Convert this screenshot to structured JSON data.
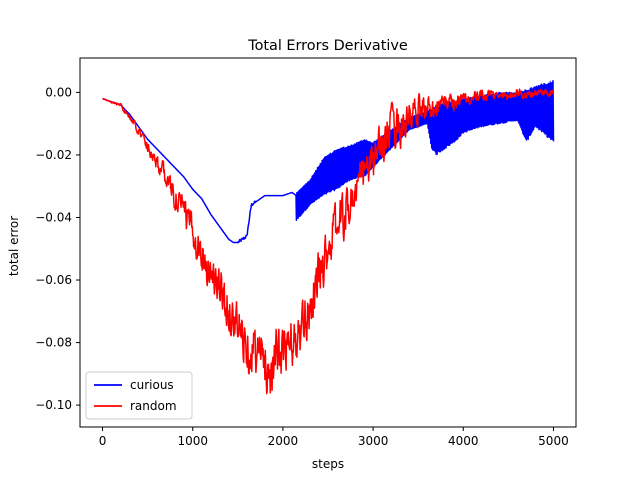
{
  "chart_data": {
    "type": "line",
    "title": "Total Errors Derivative",
    "xlabel": "steps",
    "ylabel": "total error",
    "xlim": [
      -250,
      5250
    ],
    "ylim": [
      -0.107,
      0.011
    ],
    "xticks": [
      0,
      1000,
      2000,
      3000,
      4000,
      5000
    ],
    "xtick_labels": [
      "0",
      "1000",
      "2000",
      "3000",
      "4000",
      "5000"
    ],
    "yticks": [
      0.0,
      -0.02,
      -0.04,
      -0.06,
      -0.08,
      -0.1
    ],
    "ytick_labels": [
      "0.00",
      "−0.02",
      "−0.04",
      "−0.06",
      "−0.08",
      "−0.10"
    ],
    "grid": false,
    "legend_position": "lower-left",
    "series": [
      {
        "name": "curious",
        "color": "#0000ff",
        "x": [
          0,
          100,
          200,
          300,
          400,
          500,
          600,
          700,
          800,
          900,
          1000,
          1100,
          1200,
          1300,
          1400,
          1450,
          1500,
          1550,
          1600,
          1650,
          1700,
          1750,
          1800,
          1900,
          2000,
          2100,
          2150,
          2200,
          2300,
          2400,
          2500,
          2600,
          2700,
          2800,
          2900,
          3000,
          3100,
          3200,
          3300,
          3400,
          3500,
          3600,
          3700,
          3800,
          3900,
          4000,
          4100,
          4200,
          4300,
          4400,
          4500,
          4600,
          4700,
          4800,
          4900,
          5000
        ],
        "y": [
          -0.002,
          -0.003,
          -0.004,
          -0.007,
          -0.011,
          -0.015,
          -0.018,
          -0.021,
          -0.024,
          -0.027,
          -0.031,
          -0.034,
          -0.039,
          -0.043,
          -0.047,
          -0.048,
          -0.048,
          -0.047,
          -0.046,
          -0.036,
          -0.035,
          -0.034,
          -0.033,
          -0.033,
          -0.033,
          -0.032,
          -0.033,
          -0.03,
          -0.028,
          -0.026,
          -0.024,
          -0.022,
          -0.02,
          -0.019,
          -0.018,
          -0.017,
          -0.015,
          -0.012,
          -0.014,
          -0.01,
          -0.007,
          -0.009,
          -0.014,
          -0.013,
          -0.012,
          -0.011,
          -0.01,
          -0.01,
          -0.009,
          -0.008,
          -0.007,
          -0.006,
          -0.006,
          -0.005,
          -0.005,
          -0.005
        ],
        "band_x": [
          2150,
          2300,
          2450,
          2600,
          2750,
          2900,
          3000,
          3200,
          3400,
          3600,
          3650,
          3700,
          3800,
          3900,
          4000,
          4200,
          4400,
          4600,
          4700,
          4800,
          5000
        ],
        "band_low": [
          -0.041,
          -0.036,
          -0.033,
          -0.031,
          -0.028,
          -0.027,
          -0.024,
          -0.018,
          -0.012,
          -0.01,
          -0.018,
          -0.02,
          -0.018,
          -0.016,
          -0.013,
          -0.011,
          -0.01,
          -0.009,
          -0.016,
          -0.011,
          -0.016
        ],
        "band_high": [
          -0.032,
          -0.028,
          -0.021,
          -0.018,
          -0.017,
          -0.015,
          -0.016,
          -0.012,
          -0.008,
          -0.006,
          -0.005,
          -0.004,
          -0.003,
          -0.003,
          -0.002,
          -0.001,
          0.0,
          0.0,
          0.001,
          0.002,
          0.004
        ]
      },
      {
        "name": "random",
        "color": "#ff0000",
        "x": [
          0,
          100,
          200,
          300,
          400,
          500,
          600,
          700,
          800,
          900,
          1000,
          1100,
          1200,
          1300,
          1400,
          1500,
          1600,
          1700,
          1800,
          1850,
          1900,
          2000,
          2100,
          2200,
          2300,
          2400,
          2500,
          2600,
          2700,
          2800,
          2900,
          3000,
          3100,
          3200,
          3250,
          3300,
          3400,
          3500,
          3600,
          3700,
          3800,
          3900,
          4000,
          4100,
          4200,
          4300,
          4400,
          4500,
          4600,
          4700,
          4800,
          4900,
          5000
        ],
        "y": [
          -0.002,
          -0.003,
          -0.004,
          -0.008,
          -0.012,
          -0.017,
          -0.022,
          -0.027,
          -0.033,
          -0.038,
          -0.044,
          -0.051,
          -0.058,
          -0.063,
          -0.069,
          -0.075,
          -0.08,
          -0.083,
          -0.086,
          -0.09,
          -0.086,
          -0.083,
          -0.081,
          -0.078,
          -0.068,
          -0.058,
          -0.05,
          -0.042,
          -0.038,
          -0.032,
          -0.026,
          -0.022,
          -0.017,
          -0.012,
          -0.01,
          -0.011,
          -0.009,
          -0.006,
          -0.005,
          -0.004,
          -0.003,
          -0.003,
          -0.002,
          -0.002,
          -0.001,
          -0.001,
          -0.001,
          -0.001,
          0.0,
          -0.001,
          0.0,
          0.0,
          0.0
        ],
        "noise": [
          0.0002,
          0.0005,
          0.001,
          0.0015,
          0.002,
          0.003,
          0.004,
          0.005,
          0.006,
          0.007,
          0.008,
          0.009,
          0.01,
          0.01,
          0.011,
          0.011,
          0.012,
          0.012,
          0.013,
          0.013,
          0.013,
          0.013,
          0.012,
          0.012,
          0.012,
          0.012,
          0.011,
          0.011,
          0.011,
          0.011,
          0.01,
          0.01,
          0.01,
          0.01,
          0.01,
          0.009,
          0.008,
          0.007,
          0.006,
          0.005,
          0.004,
          0.004,
          0.003,
          0.003,
          0.003,
          0.003,
          0.002,
          0.002,
          0.002,
          0.002,
          0.002,
          0.002,
          0.002
        ]
      }
    ]
  }
}
